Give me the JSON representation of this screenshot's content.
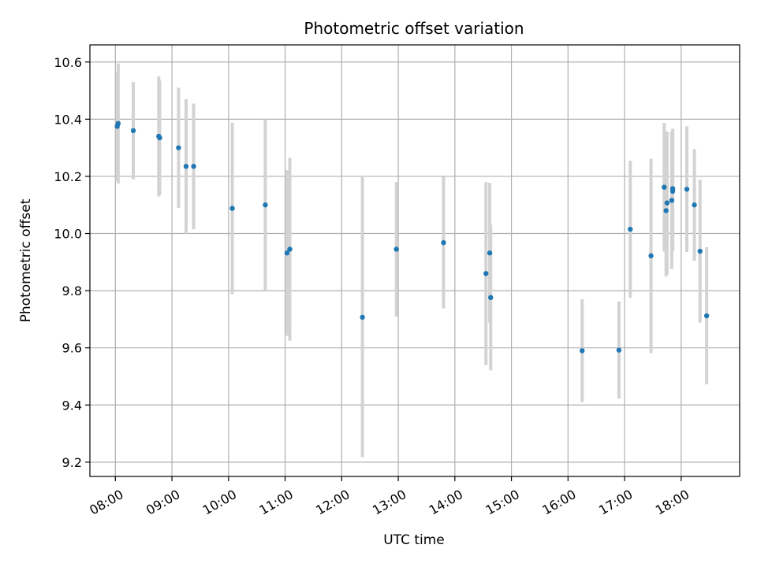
{
  "chart_data": {
    "type": "scatter",
    "title": "Photometric offset variation",
    "xlabel": "UTC time",
    "ylabel": "Photometric offset",
    "x_ticks": [
      "08:00",
      "09:00",
      "10:00",
      "11:00",
      "12:00",
      "13:00",
      "14:00",
      "15:00",
      "16:00",
      "17:00",
      "18:00"
    ],
    "y_ticks": [
      "9.2",
      "9.4",
      "9.6",
      "9.8",
      "10.0",
      "10.2",
      "10.4",
      "10.6"
    ],
    "xlim": [
      "07:33",
      "19:02"
    ],
    "ylim": [
      9.15,
      10.66
    ],
    "grid": true,
    "colors": {
      "points": "#1f77b4",
      "errorbars": "#d3d3d3",
      "grid": "#b0b0b0"
    },
    "series": [
      {
        "points": [
          {
            "x": "08:02",
            "y": 10.375,
            "err": 0.19
          },
          {
            "x": "08:03",
            "y": 10.385,
            "err": 0.21
          },
          {
            "x": "08:19",
            "y": 10.36,
            "err": 0.17
          },
          {
            "x": "08:46",
            "y": 10.34,
            "err": 0.21
          },
          {
            "x": "08:47",
            "y": 10.335,
            "err": 0.2
          },
          {
            "x": "09:07",
            "y": 10.3,
            "err": 0.21
          },
          {
            "x": "09:15",
            "y": 10.235,
            "err": 0.235
          },
          {
            "x": "09:23",
            "y": 10.235,
            "err": 0.22
          },
          {
            "x": "10:04",
            "y": 10.088,
            "err": 0.3
          },
          {
            "x": "10:39",
            "y": 10.1,
            "err": 0.3
          },
          {
            "x": "11:02",
            "y": 9.932,
            "err": 0.29
          },
          {
            "x": "11:05",
            "y": 9.945,
            "err": 0.32
          },
          {
            "x": "12:22",
            "y": 9.707,
            "err": 0.49
          },
          {
            "x": "12:58",
            "y": 9.945,
            "err": 0.235
          },
          {
            "x": "13:48",
            "y": 9.968,
            "err": 0.23
          },
          {
            "x": "14:33",
            "y": 9.86,
            "err": 0.32
          },
          {
            "x": "14:37",
            "y": 9.932,
            "err": 0.245
          },
          {
            "x": "14:38",
            "y": 9.776,
            "err": 0.255
          },
          {
            "x": "16:15",
            "y": 9.59,
            "err": 0.18
          },
          {
            "x": "16:54",
            "y": 9.592,
            "err": 0.17
          },
          {
            "x": "17:06",
            "y": 10.015,
            "err": 0.24
          },
          {
            "x": "17:28",
            "y": 9.922,
            "err": 0.34
          },
          {
            "x": "17:42",
            "y": 10.162,
            "err": 0.225
          },
          {
            "x": "17:44",
            "y": 10.08,
            "err": 0.23
          },
          {
            "x": "17:45",
            "y": 10.107,
            "err": 0.25
          },
          {
            "x": "17:50",
            "y": 10.116,
            "err": 0.24
          },
          {
            "x": "17:51",
            "y": 10.157,
            "err": 0.21
          },
          {
            "x": "17:51",
            "y": 10.148,
            "err": 0.21
          },
          {
            "x": "18:06",
            "y": 10.155,
            "err": 0.22
          },
          {
            "x": "18:14",
            "y": 10.1,
            "err": 0.195
          },
          {
            "x": "18:20",
            "y": 9.938,
            "err": 0.25
          },
          {
            "x": "18:27",
            "y": 9.712,
            "err": 0.24
          }
        ]
      }
    ]
  }
}
